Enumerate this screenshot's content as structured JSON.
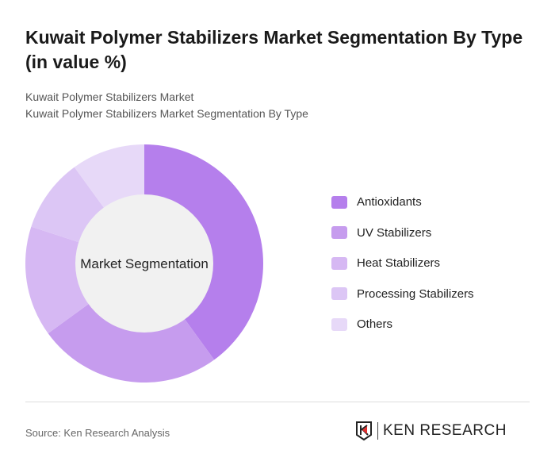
{
  "title": "Kuwait Polymer Stabilizers Market Segmentation By Type (in value %)",
  "breadcrumb": [
    "Kuwait Polymer Stabilizers Market",
    "Kuwait Polymer Stabilizers Market Segmentation By Type"
  ],
  "source": "Source: Ken Research Analysis",
  "logo_text": "KEN RESEARCH",
  "chart_data": {
    "type": "pie",
    "variant": "donut",
    "center_label": "Market Segmentation",
    "legend_position": "right",
    "categories": [
      "Antioxidants",
      "UV Stabilizers",
      "Heat Stabilizers",
      "Processing Stabilizers",
      "Others"
    ],
    "values": [
      40,
      25,
      15,
      10,
      10
    ],
    "colors": [
      "#b57fec",
      "#c69cee",
      "#d6b8f3",
      "#dcc6f5",
      "#e7d9f8"
    ]
  }
}
